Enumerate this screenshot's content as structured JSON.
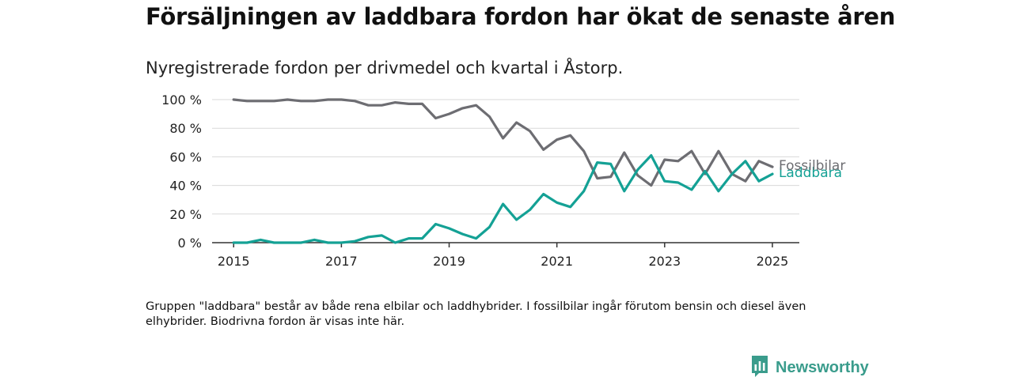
{
  "title": "Försäljningen av laddbara fordon har ökat de senaste åren",
  "subtitle": "Nyregistrerade fordon per drivmedel och kvartal i Åstorp.",
  "note": "Gruppen \"laddbara\" består av både rena elbilar och laddhybrider. I fossilbilar ingår förutom bensin och diesel även elhybrider. Biodrivna fordon är visas inte här.",
  "brand": {
    "name": "Newsworthy",
    "icon": "newsworthy-logo-icon",
    "color": "#3a9c8c"
  },
  "chart_data": {
    "type": "line",
    "x": [
      2015.0,
      2015.25,
      2015.5,
      2015.75,
      2016.0,
      2016.25,
      2016.5,
      2016.75,
      2017.0,
      2017.25,
      2017.5,
      2017.75,
      2018.0,
      2018.25,
      2018.5,
      2018.75,
      2019.0,
      2019.25,
      2019.5,
      2019.75,
      2020.0,
      2020.25,
      2020.5,
      2020.75,
      2021.0,
      2021.25,
      2021.5,
      2021.75,
      2022.0,
      2022.25,
      2022.5,
      2022.75,
      2023.0,
      2023.25,
      2023.5,
      2023.75,
      2024.0,
      2024.25,
      2024.5,
      2024.75,
      2025.0
    ],
    "xticks": [
      2015,
      2017,
      2019,
      2021,
      2023,
      2025
    ],
    "xlim": [
      2014.6,
      2025.5
    ],
    "ylim": [
      0,
      100
    ],
    "yticks": [
      0,
      20,
      40,
      60,
      80,
      100
    ],
    "ytick_labels": [
      "0 %",
      "20 %",
      "40 %",
      "60 %",
      "80 %",
      "100 %"
    ],
    "grid": "horizontal",
    "series": [
      {
        "name": "Fossilbilar",
        "color": "#6d6d72",
        "values": [
          100,
          99,
          99,
          99,
          100,
          99,
          99,
          100,
          100,
          99,
          96,
          96,
          98,
          97,
          97,
          87,
          90,
          94,
          96,
          88,
          73,
          84,
          78,
          65,
          72,
          75,
          64,
          45,
          46,
          63,
          47,
          40,
          58,
          57,
          64,
          48,
          64,
          48,
          43,
          57,
          53
        ]
      },
      {
        "name": "Laddbara",
        "color": "#14a195",
        "values": [
          0,
          0,
          2,
          0,
          0,
          0,
          2,
          0,
          0,
          1,
          4,
          5,
          0,
          3,
          3,
          13,
          10,
          6,
          3,
          11,
          27,
          16,
          23,
          34,
          28,
          25,
          36,
          56,
          55,
          36,
          51,
          61,
          43,
          42,
          37,
          50,
          36,
          48,
          57,
          43,
          48
        ]
      }
    ]
  }
}
